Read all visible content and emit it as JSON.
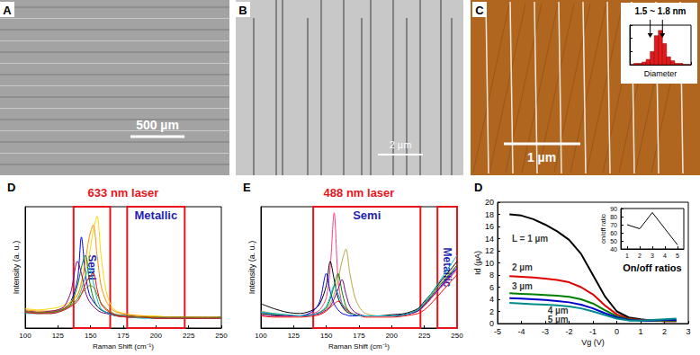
{
  "panels": [
    {
      "label": "A",
      "scale_bar": "500 µm"
    },
    {
      "label": "B",
      "scale_bar": "2 µm"
    },
    {
      "label": "C",
      "scale_bar": "1 µm"
    }
  ],
  "chart_data": [
    {
      "type": "histogram",
      "xlabel": "Diameter",
      "annotation": "1.5 ~ 1.8 nm",
      "marked": [
        1.5,
        1.8
      ],
      "bins": [
        1.0,
        1.1,
        1.2,
        1.3,
        1.4,
        1.5,
        1.6,
        1.7,
        1.8,
        1.9,
        2.0,
        2.1,
        2.2,
        2.3,
        2.4,
        2.5
      ],
      "counts": [
        0,
        1,
        1,
        2,
        4,
        10,
        22,
        26,
        16,
        6,
        3,
        1,
        1,
        0,
        0
      ],
      "color": "#e31a1c",
      "xlim": [
        1.0,
        2.5
      ],
      "ylim": [
        0,
        30
      ],
      "xticks": [
        1,
        1.5,
        2,
        2.5
      ],
      "yticks": [
        0,
        10,
        20,
        30
      ],
      "tick_labels": false
    },
    {
      "type": "line",
      "panel": "D",
      "title": "633 nm laser",
      "xlabel": "Raman Shift (cm⁻¹)",
      "ylabel": "Intensity (a. u.)",
      "marker": "none",
      "line_style": "solid",
      "tick_labels": "x",
      "xlim": [
        100,
        250
      ],
      "ylim": [
        0,
        100
      ],
      "xticks": [
        100,
        125,
        150,
        175,
        200,
        225,
        250
      ],
      "regions": [
        {
          "label": "Semi",
          "x": [
            137,
            165
          ]
        },
        {
          "label": "Metallic",
          "x": [
            178,
            222
          ]
        }
      ],
      "x": [
        100,
        110,
        120,
        125,
        130,
        135,
        140,
        143,
        146,
        149,
        152,
        155,
        158,
        162,
        166,
        170,
        180,
        190,
        200,
        210,
        220,
        230,
        240,
        250
      ],
      "series": [
        {
          "color": "#0000ff",
          "values": [
            14,
            13,
            13,
            14,
            16,
            22,
            40,
            75,
            45,
            28,
            22,
            18,
            15,
            13,
            12,
            11,
            10,
            9,
            9,
            8,
            9,
            8,
            8,
            9
          ]
        },
        {
          "color": "#ffd700",
          "values": [
            16,
            15,
            16,
            17,
            19,
            22,
            28,
            35,
            45,
            60,
            80,
            92,
            60,
            30,
            18,
            14,
            11,
            10,
            10,
            9,
            9,
            9,
            8,
            9
          ]
        },
        {
          "color": "#ff8c00",
          "values": [
            15,
            14,
            14,
            15,
            17,
            21,
            27,
            38,
            55,
            75,
            85,
            60,
            35,
            22,
            16,
            13,
            11,
            10,
            9,
            9,
            9,
            9,
            9,
            9
          ]
        },
        {
          "color": "#008000",
          "values": [
            13,
            12,
            13,
            14,
            16,
            20,
            35,
            50,
            60,
            40,
            25,
            18,
            15,
            13,
            11,
            10,
            9,
            9,
            8,
            8,
            8,
            8,
            8,
            9
          ]
        },
        {
          "color": "#800080",
          "values": [
            14,
            13,
            14,
            15,
            18,
            30,
            55,
            45,
            30,
            22,
            18,
            15,
            13,
            12,
            11,
            10,
            9,
            9,
            8,
            8,
            8,
            8,
            8,
            8
          ]
        },
        {
          "color": "#00bcd4",
          "values": [
            12,
            12,
            12,
            13,
            15,
            18,
            24,
            32,
            42,
            50,
            38,
            24,
            16,
            13,
            11,
            10,
            9,
            8,
            8,
            8,
            8,
            8,
            8,
            8
          ]
        },
        {
          "color": "#ff0000",
          "values": [
            13,
            12,
            12,
            13,
            15,
            18,
            22,
            28,
            36,
            42,
            45,
            32,
            20,
            15,
            12,
            10,
            9,
            9,
            8,
            8,
            8,
            8,
            8,
            8
          ]
        },
        {
          "color": "#808000",
          "values": [
            14,
            13,
            13,
            14,
            16,
            19,
            24,
            28,
            32,
            35,
            34,
            28,
            21,
            16,
            13,
            11,
            10,
            9,
            9,
            9,
            9,
            9,
            9,
            9
          ]
        }
      ]
    },
    {
      "type": "line",
      "panel": "E",
      "title": "488 nm laser",
      "xlabel": "Raman Shift (cm⁻¹)",
      "ylabel": "Intensity (a. u.)",
      "marker": "none",
      "line_style": "solid",
      "tick_labels": "x",
      "xlim": [
        100,
        250
      ],
      "ylim": [
        0,
        100
      ],
      "xticks": [
        100,
        125,
        150,
        175,
        200,
        225,
        250
      ],
      "regions": [
        {
          "label": "Semi",
          "x": [
            140,
            222
          ]
        },
        {
          "label": "Metallic",
          "x": [
            235,
            250
          ]
        }
      ],
      "x": [
        100,
        110,
        120,
        130,
        140,
        145,
        150,
        153,
        156,
        159,
        162,
        165,
        168,
        172,
        176,
        180,
        190,
        200,
        210,
        220,
        225,
        230,
        235,
        240,
        245,
        250
      ],
      "series": [
        {
          "color": "#ff4081",
          "values": [
            12,
            11,
            10,
            10,
            12,
            15,
            25,
            50,
            95,
            40,
            20,
            14,
            12,
            11,
            10,
            10,
            10,
            10,
            11,
            14,
            18,
            24,
            30,
            36,
            42,
            48
          ]
        },
        {
          "color": "#000000",
          "values": [
            20,
            16,
            13,
            12,
            15,
            20,
            35,
            55,
            40,
            25,
            18,
            14,
            12,
            11,
            10,
            10,
            10,
            11,
            12,
            16,
            22,
            28,
            35,
            42,
            48,
            55
          ]
        },
        {
          "color": "#b5a642",
          "values": [
            14,
            12,
            11,
            10,
            11,
            13,
            16,
            20,
            28,
            40,
            55,
            65,
            45,
            25,
            16,
            12,
            10,
            10,
            11,
            15,
            20,
            27,
            34,
            40,
            46,
            52
          ]
        },
        {
          "color": "#0000ff",
          "values": [
            13,
            11,
            10,
            10,
            14,
            22,
            45,
            30,
            20,
            15,
            12,
            11,
            10,
            10,
            10,
            10,
            10,
            10,
            11,
            14,
            19,
            25,
            31,
            38,
            44,
            50
          ]
        },
        {
          "color": "#008000",
          "values": [
            12,
            11,
            10,
            10,
            11,
            13,
            17,
            24,
            35,
            45,
            30,
            18,
            13,
            11,
            10,
            10,
            10,
            10,
            11,
            15,
            20,
            26,
            33,
            39,
            45,
            52
          ]
        },
        {
          "color": "#800080",
          "values": [
            11,
            10,
            10,
            10,
            11,
            12,
            15,
            18,
            24,
            32,
            40,
            28,
            18,
            13,
            11,
            10,
            10,
            10,
            11,
            14,
            19,
            25,
            31,
            37,
            43,
            49
          ]
        },
        {
          "color": "#ff0000",
          "values": [
            10,
            9,
            9,
            9,
            10,
            11,
            14,
            17,
            20,
            22,
            20,
            16,
            13,
            11,
            10,
            9,
            9,
            9,
            10,
            12,
            15,
            20,
            26,
            32,
            38,
            44
          ]
        },
        {
          "color": "#00bcd4",
          "values": [
            13,
            12,
            11,
            10,
            11,
            13,
            18,
            26,
            35,
            28,
            20,
            15,
            12,
            11,
            10,
            10,
            10,
            10,
            11,
            15,
            21,
            28,
            36,
            44,
            52,
            60
          ]
        }
      ]
    },
    {
      "type": "line",
      "panel": "D",
      "xlabel": "Vg (V)",
      "ylabel": "Id (µA)",
      "marker": "none",
      "line_style": "solid",
      "xlim": [
        -5,
        3
      ],
      "ylim": [
        0,
        20
      ],
      "xticks": [
        -5,
        -4,
        -3,
        -2,
        -1,
        0,
        1,
        2,
        3
      ],
      "yticks": [
        0,
        2,
        4,
        6,
        8,
        10,
        12,
        14,
        16,
        18,
        20
      ],
      "x": [
        -4.5,
        -4,
        -3.5,
        -3,
        -2.5,
        -2,
        -1.5,
        -1,
        -0.5,
        0,
        0.5,
        1,
        1.5,
        2,
        2.5
      ],
      "series": [
        {
          "color": "#000000",
          "values": [
            18,
            17.8,
            17.2,
            16.3,
            15.2,
            13.8,
            11.5,
            8,
            4.5,
            2,
            1,
            0.7,
            0.5,
            0.4,
            0.4
          ]
        },
        {
          "color": "#e00000",
          "values": [
            7.8,
            7.7,
            7.6,
            7.4,
            7.2,
            6.8,
            6,
            4.8,
            3,
            1.5,
            0.8,
            0.6,
            0.5,
            0.4,
            0.4
          ]
        },
        {
          "color": "#008000",
          "values": [
            5,
            4.9,
            4.8,
            4.7,
            4.6,
            4.4,
            4,
            3.3,
            2.2,
            1.2,
            0.7,
            0.5,
            0.5,
            0.5,
            0.5
          ]
        },
        {
          "color": "#0000cd",
          "values": [
            4.2,
            4.1,
            4,
            3.9,
            3.7,
            3.5,
            3.1,
            2.5,
            1.7,
            1,
            0.6,
            0.5,
            0.5,
            0.6,
            0.6
          ]
        },
        {
          "color": "#008b8b",
          "values": [
            3.4,
            3.3,
            3.2,
            3.1,
            3,
            2.8,
            2.5,
            2,
            1.4,
            0.8,
            0.5,
            0.5,
            0.6,
            0.7,
            0.8
          ]
        }
      ],
      "annotations": [
        {
          "text": "L = 1 µm",
          "x": -4.4,
          "y": 14
        },
        {
          "text": "2 µm",
          "x": -4.4,
          "y": 9.2
        },
        {
          "text": "3 µm",
          "x": -4.4,
          "y": 6.2
        },
        {
          "text": "4 µm",
          "x": -2.9,
          "y": 2.2
        },
        {
          "text": "5 µm",
          "x": -2.9,
          "y": 0.6
        }
      ]
    },
    {
      "type": "line",
      "title": "On/off ratios",
      "ylabel": "on/off ratio",
      "marker": "none",
      "line_style": "solid",
      "color": "#000000",
      "xlim": [
        0.5,
        5.5
      ],
      "ylim": [
        40,
        90
      ],
      "xticks": [
        1,
        2,
        3,
        4,
        5
      ],
      "yticks": [
        40,
        50,
        60,
        70,
        80,
        90
      ],
      "x": [
        1,
        2,
        3,
        4,
        5
      ],
      "values": [
        70,
        65,
        85,
        65,
        45
      ]
    }
  ]
}
